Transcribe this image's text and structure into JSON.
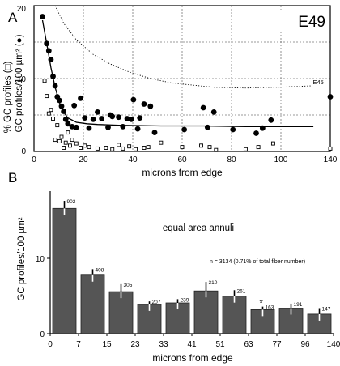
{
  "chart_data": [
    {
      "panel_label": "A",
      "type": "scatter",
      "title": "E49",
      "xlabel": "microns from edge",
      "ylabel_outer": "% GC profiles (□)",
      "ylabel_inner": "GC profiles/100 µm² (●)",
      "xlim": [
        0,
        140
      ],
      "ylim": [
        0,
        20
      ],
      "x_ticks": [
        0,
        20,
        40,
        60,
        80,
        100,
        120,
        140
      ],
      "y_ticks": [
        0,
        10,
        20
      ],
      "grid": true,
      "series": [
        {
          "marker": "filled-circle",
          "points": [
            [
              4,
              18.5
            ],
            [
              6,
              14.8
            ],
            [
              7,
              13.8
            ],
            [
              8,
              12.6
            ],
            [
              9,
              10.3
            ],
            [
              10,
              9.0
            ],
            [
              11,
              7.5
            ],
            [
              12,
              7.0
            ],
            [
              13,
              6.2
            ],
            [
              14,
              5.5
            ],
            [
              15,
              4.4
            ],
            [
              16,
              3.8
            ],
            [
              18,
              3.4
            ],
            [
              19,
              6.3
            ],
            [
              20,
              3.3
            ],
            [
              22,
              7.3
            ],
            [
              24,
              4.6
            ],
            [
              26,
              3.2
            ],
            [
              28,
              4.4
            ],
            [
              30,
              5.4
            ],
            [
              32,
              4.5
            ],
            [
              35,
              3.3
            ],
            [
              36,
              5.0
            ],
            [
              37,
              4.8
            ],
            [
              40,
              4.7
            ],
            [
              42,
              3.4
            ],
            [
              44,
              4.5
            ],
            [
              46,
              4.4
            ],
            [
              47,
              7.1
            ],
            [
              49,
              3.1
            ],
            [
              50,
              4.6
            ],
            [
              52,
              6.5
            ],
            [
              55,
              6.2
            ],
            [
              57,
              2.6
            ],
            [
              71,
              3.0
            ],
            [
              80,
              6.0
            ],
            [
              82,
              3.3
            ],
            [
              85,
              5.4
            ],
            [
              94,
              3.0
            ],
            [
              105,
              2.5
            ],
            [
              108,
              3.2
            ],
            [
              112,
              4.3
            ],
            [
              140,
              7.5
            ]
          ]
        },
        {
          "marker": "open-square",
          "points": [
            [
              5,
              9.7
            ],
            [
              6,
              7.6
            ],
            [
              7,
              5.2
            ],
            [
              8,
              5.7
            ],
            [
              9,
              4.5
            ],
            [
              10,
              1.6
            ],
            [
              11,
              3.6
            ],
            [
              12,
              1.4
            ],
            [
              13,
              2.0
            ],
            [
              14,
              0.5
            ],
            [
              15,
              1.2
            ],
            [
              16,
              2.6
            ],
            [
              17,
              0.8
            ],
            [
              18,
              1.6
            ],
            [
              20,
              1.1
            ],
            [
              22,
              0.5
            ],
            [
              24,
              0.8
            ],
            [
              26,
              0.6
            ],
            [
              30,
              0.4
            ],
            [
              34,
              0.5
            ],
            [
              37,
              0.3
            ],
            [
              40,
              0.9
            ],
            [
              42,
              0.4
            ],
            [
              45,
              0.7
            ],
            [
              48,
              0.3
            ],
            [
              52,
              0.5
            ],
            [
              54,
              0.6
            ],
            [
              60,
              1.2
            ],
            [
              70,
              0.6
            ],
            [
              79,
              0.8
            ],
            [
              83,
              0.6
            ],
            [
              86,
              0.2
            ],
            [
              100,
              0.3
            ],
            [
              106,
              0.6
            ],
            [
              113,
              1.1
            ],
            [
              140,
              0.4
            ]
          ]
        }
      ],
      "fit_curve": {
        "style": "solid",
        "points": [
          [
            4,
            18
          ],
          [
            6,
            14.8
          ],
          [
            8,
            11.5
          ],
          [
            10,
            8.8
          ],
          [
            12,
            6.7
          ],
          [
            14,
            5.4
          ],
          [
            16,
            4.6
          ],
          [
            20,
            4.0
          ],
          [
            25,
            3.8
          ],
          [
            30,
            3.7
          ],
          [
            40,
            3.6
          ],
          [
            60,
            3.5
          ],
          [
            80,
            3.5
          ],
          [
            100,
            3.4
          ],
          [
            132,
            3.4
          ]
        ]
      },
      "reference_curve": {
        "label": "E45",
        "style": "dotted",
        "points": [
          [
            10,
            20
          ],
          [
            14,
            17.6
          ],
          [
            20,
            15.3
          ],
          [
            28,
            13.3
          ],
          [
            36,
            12
          ],
          [
            45,
            10.9
          ],
          [
            55,
            10
          ],
          [
            65,
            9.4
          ],
          [
            75,
            9.1
          ],
          [
            85,
            8.8
          ],
          [
            100,
            8.7
          ],
          [
            115,
            8.8
          ],
          [
            131,
            9.0
          ]
        ]
      }
    },
    {
      "panel_label": "B",
      "type": "bar",
      "xlabel": "microns from edge",
      "ylabel": "GC profiles/100 µm²",
      "annotation": "equal area annuli",
      "note": "n = 3134 (0.71% of total fiber number)",
      "ylim": [
        0,
        19
      ],
      "y_ticks": [
        0,
        10
      ],
      "x_tick_labels": [
        "0",
        "7",
        "15",
        "23",
        "33",
        "41",
        "51",
        "63",
        "77",
        "96",
        "140"
      ],
      "asterisk_label": "*",
      "values": [
        16.7,
        7.8,
        5.6,
        3.9,
        4.1,
        5.7,
        5.0,
        3.2,
        3.4,
        2.6
      ],
      "error_tops": [
        17.7,
        8.6,
        6.6,
        4.3,
        4.6,
        6.9,
        5.8,
        3.6,
        4.0,
        3.4
      ],
      "count_labels": [
        "902",
        "408",
        "305",
        "207",
        "239",
        "310",
        "261",
        "163",
        "191",
        "147"
      ]
    }
  ]
}
